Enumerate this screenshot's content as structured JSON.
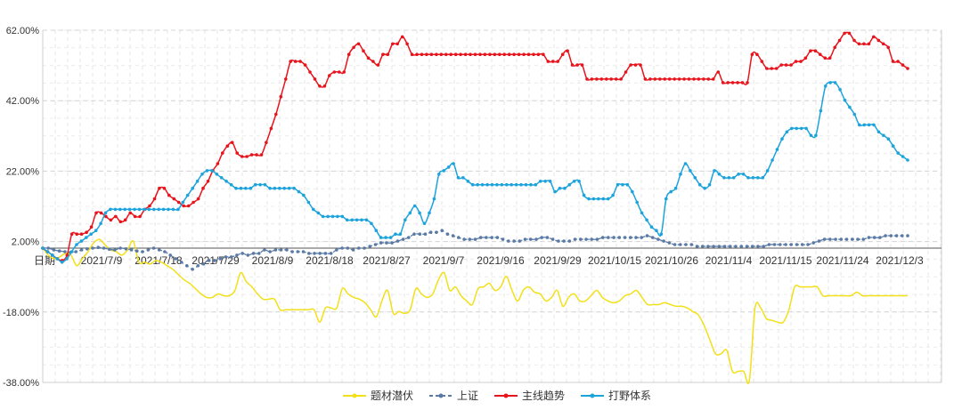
{
  "chart_data": {
    "type": "line",
    "xlabel": "日期",
    "ylim": [
      -38,
      62
    ],
    "y_ticks": [
      "62.00%",
      "42.00%",
      "22.00%",
      "2.00%",
      "-18.00%",
      "-38.00%"
    ],
    "y_tick_values": [
      62,
      42,
      22,
      2,
      -18,
      -38
    ],
    "x_labels": [
      "2021/7/9",
      "2021/7/18",
      "2021/7/29",
      "2021/8/9",
      "2021/8/18",
      "2021/8/27",
      "2021/9/7",
      "2021/9/16",
      "2021/9/29",
      "2021/10/15",
      "2021/10/26",
      "2021/11/4",
      "2021/11/15",
      "2021/11/24",
      "2021/12/3"
    ],
    "grid": "dashed",
    "legend_position": "bottom-center",
    "series": [
      {
        "name": "题材潜伏",
        "color": "#f2e018",
        "markers": false,
        "values": [
          0,
          -2,
          -3,
          -2.5,
          -1.5,
          -2,
          -5,
          -3,
          -1,
          1.5,
          2.5,
          1,
          -0.5,
          -1,
          -2,
          -0.5,
          2,
          -4,
          -4,
          -4.5,
          -3.5,
          -4,
          -5,
          -6,
          -7.5,
          -9,
          -10,
          -11.5,
          -13,
          -14,
          -14,
          -13,
          -13.5,
          -13.5,
          -12,
          -7,
          -9.5,
          -11,
          -13,
          -14.5,
          -14.5,
          -14.5,
          -17.5,
          -17.5,
          -17.5,
          -17.5,
          -17.5,
          -17.5,
          -17.5,
          -21,
          -17,
          -17,
          -17,
          -11.5,
          -13,
          -14,
          -14.5,
          -15.5,
          -17.5,
          -19.5,
          -15,
          -12,
          -18.5,
          -18,
          -18.5,
          -17.5,
          -11.5,
          -13,
          -14,
          -13,
          -9,
          -7,
          -12,
          -11,
          -13.5,
          -15,
          -16,
          -11.5,
          -11,
          -10,
          -12,
          -11,
          -8,
          -12,
          -15,
          -12,
          -11,
          -12.5,
          -13,
          -15,
          -14,
          -12,
          -16.5,
          -14,
          -13,
          -15,
          -15,
          -13.5,
          -12,
          -14,
          -15,
          -15.5,
          -15,
          -13.5,
          -13,
          -12,
          -14,
          -16,
          -16,
          -16,
          -15.5,
          -16,
          -16.5,
          -16.5,
          -17,
          -18,
          -19,
          -22,
          -26,
          -30,
          -30,
          -29,
          -35,
          -35,
          -35,
          -37.5,
          -17,
          -17,
          -20,
          -20.5,
          -21,
          -21,
          -17.5,
          -11,
          -11,
          -11,
          -11,
          -11,
          -13.5,
          -13.5,
          -13.5,
          -13.5,
          -13.5,
          -13.5,
          -12.5,
          -13.5,
          -13.5,
          -13.5,
          -13.5,
          -13.5,
          -13.5,
          -13.5,
          -13.5,
          -13.5
        ]
      },
      {
        "name": "上证",
        "color": "#5a7aa6",
        "dashed": true,
        "markers": true,
        "values": [
          0,
          0,
          -0.5,
          -0.8,
          -1,
          -1.2,
          -1,
          -0.5,
          -0.2,
          0,
          0.2,
          0,
          -0.3,
          -0.5,
          0,
          -0.2,
          -0.5,
          -0.8,
          -1,
          -0.5,
          0,
          -0.5,
          -1,
          -2,
          -3,
          -4,
          -5,
          -6,
          -5,
          -4.5,
          -3.5,
          -3.5,
          -3,
          -2.5,
          -2.5,
          -2,
          -1.5,
          -2,
          -1.5,
          -1.5,
          -0.5,
          -1,
          -0.5,
          -0.5,
          -0.5,
          -1,
          -1,
          -1,
          -1.5,
          -1.5,
          -1.5,
          -1.5,
          -1.5,
          -0.5,
          0,
          0,
          -0.5,
          0,
          0,
          0.5,
          1,
          1.5,
          1.5,
          1.5,
          2,
          2.5,
          3,
          4,
          4,
          4,
          4.5,
          4.5,
          5,
          4,
          3.5,
          3,
          2.5,
          2.5,
          2.5,
          3,
          3,
          3,
          3,
          2.5,
          2,
          2,
          2,
          2.5,
          2.5,
          2.5,
          3,
          3,
          2.5,
          2,
          2,
          2,
          2.5,
          2.5,
          2.5,
          2.5,
          2.5,
          3,
          3,
          3,
          3,
          3,
          3,
          3,
          3,
          3.5,
          3,
          2.5,
          2,
          1.5,
          1,
          1,
          1,
          1,
          0.5,
          0.5,
          0.5,
          0.5,
          0.5,
          0.5,
          0.5,
          0.5,
          0.5,
          0.5,
          0.5,
          0.5,
          0.5,
          1,
          1,
          1,
          1,
          1,
          1,
          1,
          1,
          1.5,
          2,
          2.5,
          2.5,
          2.5,
          2.5,
          2.5,
          2.5,
          2.5,
          2.5,
          3,
          3,
          3,
          3.5,
          3.5,
          3.5,
          3.5,
          3.5
        ]
      },
      {
        "name": "主线趋势",
        "color": "#e8141c",
        "markers": true,
        "values": [
          0,
          -1,
          -2,
          -3,
          -3.5,
          -2,
          4,
          4,
          4,
          4.5,
          6,
          10,
          10,
          9,
          8,
          9,
          7.5,
          8,
          10,
          9,
          9,
          11,
          12,
          14,
          17,
          17,
          15,
          14,
          13,
          12,
          12,
          13,
          14,
          17,
          19,
          22,
          24,
          27,
          29,
          30,
          27,
          26,
          26,
          26.5,
          26.5,
          26.5,
          30,
          34,
          38,
          43,
          48,
          53,
          53,
          53,
          52,
          50,
          48,
          46,
          46,
          49,
          50,
          50,
          50,
          55,
          57,
          58,
          56,
          54,
          53,
          52,
          55,
          55,
          58,
          58,
          60,
          58,
          55,
          55,
          55,
          55,
          55,
          55,
          55,
          55,
          55,
          55,
          55,
          55,
          55,
          55,
          55,
          55,
          55,
          55,
          55,
          55,
          55,
          55,
          55,
          55,
          55,
          55,
          55,
          55,
          53,
          53,
          53,
          55,
          56,
          52,
          52,
          52,
          48,
          48,
          48,
          48,
          48,
          48,
          48,
          48,
          50,
          52,
          52,
          52,
          48,
          48,
          48,
          48,
          48,
          48,
          48,
          48,
          48,
          48,
          48,
          48,
          48,
          48,
          48,
          50,
          47,
          47,
          47,
          47,
          47,
          47,
          55,
          55,
          53,
          51,
          51,
          51,
          52,
          52,
          52,
          53,
          53,
          54,
          56,
          56,
          55,
          54,
          54,
          57,
          59,
          61,
          61,
          59,
          58,
          58,
          58,
          60,
          59,
          58,
          57,
          53,
          53,
          52,
          51
        ]
      },
      {
        "name": "打野体系",
        "color": "#1ca3dc",
        "markers": true,
        "values": [
          0,
          -1,
          -2,
          -3,
          -4,
          -3,
          -1,
          1,
          2,
          3,
          4,
          5,
          7,
          10,
          11,
          11,
          11,
          11,
          11,
          11,
          11,
          11,
          11,
          11,
          11,
          11,
          11,
          11,
          11,
          13,
          15,
          17,
          19,
          21,
          22,
          22,
          21,
          20,
          19,
          18,
          17,
          17,
          17,
          17,
          18,
          18,
          18,
          17,
          17,
          17,
          17,
          17,
          17,
          16,
          15,
          13,
          11,
          10,
          9,
          9,
          9,
          9,
          9,
          8,
          8,
          8,
          8,
          8,
          7,
          5,
          3,
          3,
          3,
          4,
          4,
          8,
          10,
          12,
          10,
          7,
          10,
          14,
          21,
          22,
          23,
          24,
          20,
          20,
          19,
          18,
          18,
          18,
          18,
          18,
          18,
          18,
          18,
          18,
          18,
          18,
          18,
          18,
          18,
          19,
          19,
          19,
          16,
          17,
          17,
          18,
          19,
          19,
          15,
          14,
          14,
          14,
          14,
          14,
          15,
          18,
          18,
          18,
          16,
          13,
          10,
          8,
          6,
          5,
          4,
          14,
          16,
          17,
          21,
          24,
          22,
          20,
          18,
          17,
          18,
          22,
          21,
          20,
          20,
          20,
          21,
          21,
          20,
          20,
          20,
          20,
          22,
          25,
          28,
          31,
          33,
          34,
          34,
          34,
          34,
          32,
          32,
          39,
          46,
          47,
          47,
          45,
          42,
          40,
          38,
          35,
          35,
          35,
          35,
          33,
          32,
          31,
          29,
          27,
          26,
          25
        ]
      }
    ]
  }
}
